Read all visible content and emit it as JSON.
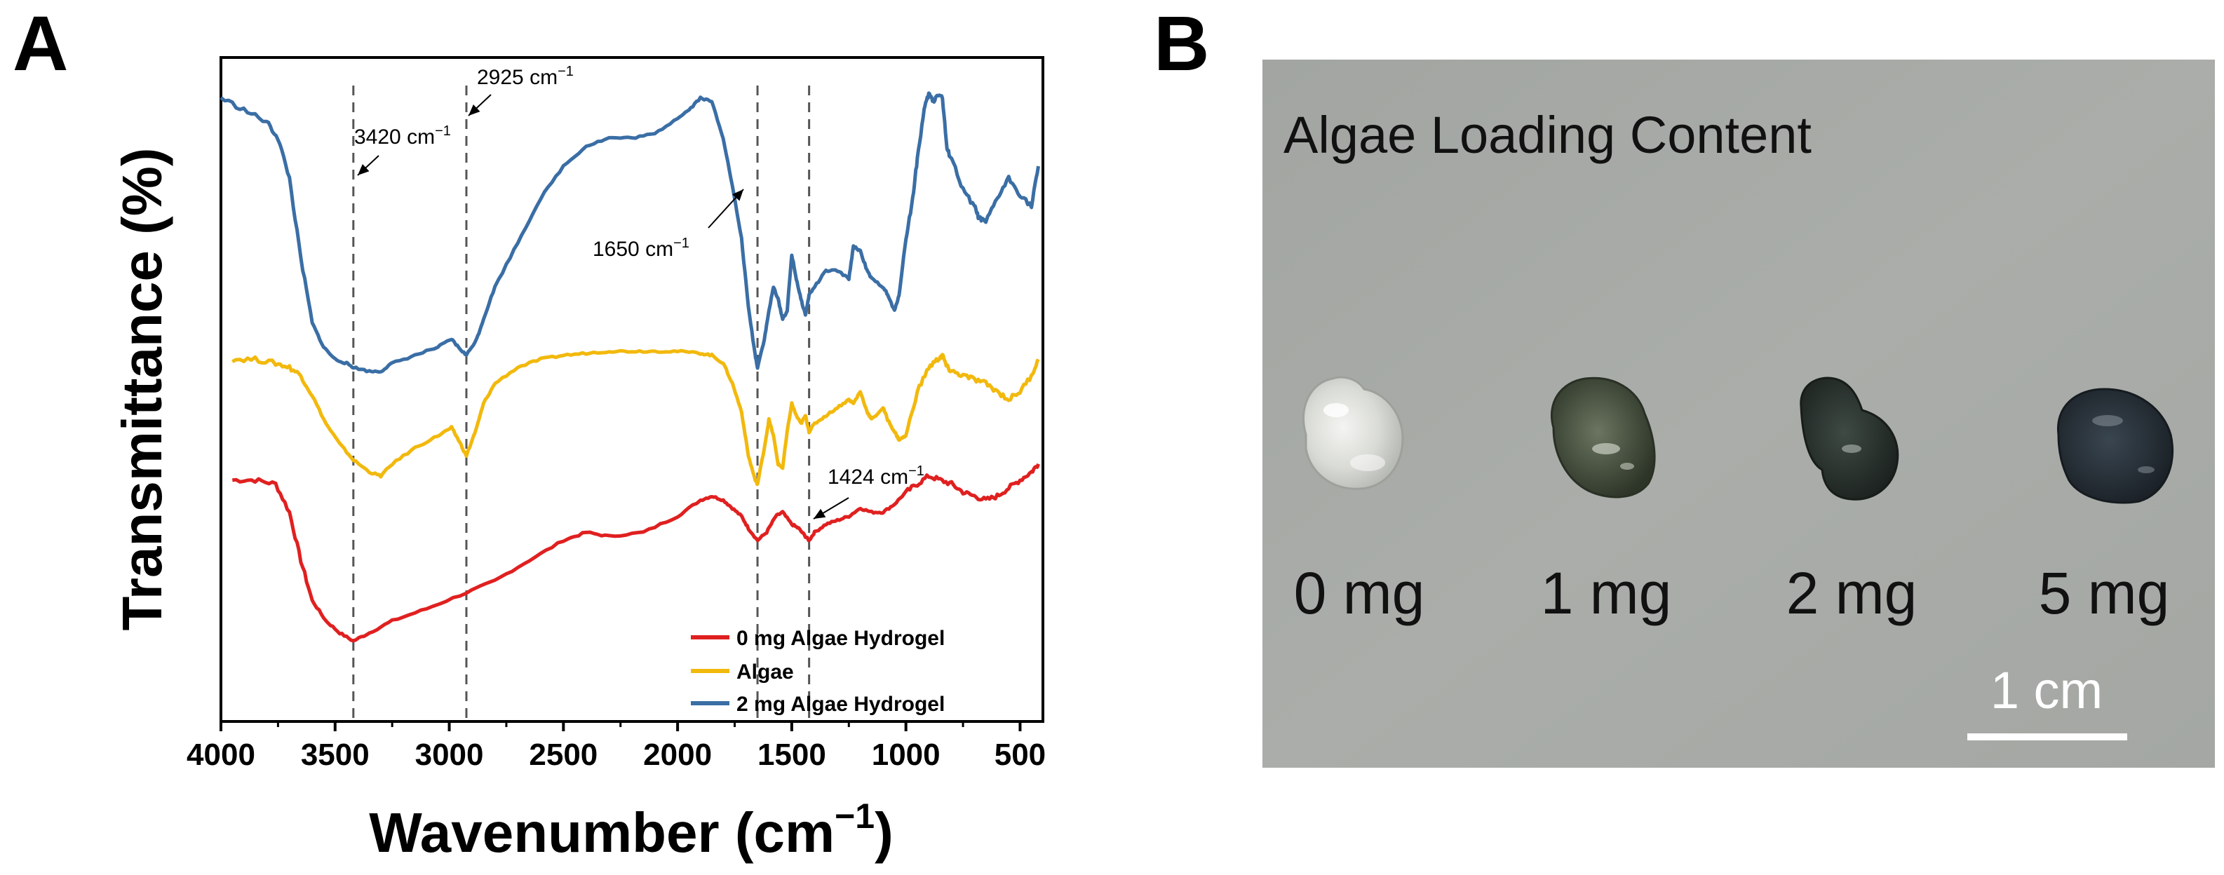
{
  "panels": {
    "a_letter": "A",
    "b_letter": "B"
  },
  "chart_data": {
    "type": "line",
    "title": "",
    "xlabel": "Wavenumber (cm",
    "xlabel_sup": "−1",
    "xlabel_close": ")",
    "ylabel": "Transmittance (%)",
    "xlim": [
      4000,
      400
    ],
    "x_reversed": true,
    "y_ticks_shown": false,
    "grid": false,
    "legend_position": "bottom-right",
    "x_ticks": [
      4000,
      3500,
      3000,
      2500,
      2000,
      1500,
      1000,
      500
    ],
    "colors": {
      "0mg": "#e02020",
      "algae": "#f2b90d",
      "2mg": "#3a6ea5"
    },
    "series": [
      {
        "name": "0 mg Algae Hydrogel",
        "key": "0mg",
        "x": [
          3950,
          3850,
          3760,
          3700,
          3650,
          3600,
          3540,
          3480,
          3420,
          3350,
          3250,
          3100,
          2925,
          2800,
          2650,
          2500,
          2400,
          2300,
          2150,
          2000,
          1900,
          1850,
          1800,
          1760,
          1720,
          1690,
          1650,
          1610,
          1570,
          1540,
          1500,
          1470,
          1440,
          1424,
          1400,
          1350,
          1300,
          1250,
          1200,
          1150,
          1100,
          1050,
          1000,
          950,
          900,
          850,
          800,
          750,
          700,
          650,
          600,
          550,
          500,
          450,
          420
        ],
        "y": [
          0.6,
          0.6,
          0.59,
          0.52,
          0.4,
          0.3,
          0.25,
          0.22,
          0.2,
          0.22,
          0.25,
          0.28,
          0.32,
          0.35,
          0.4,
          0.45,
          0.47,
          0.46,
          0.47,
          0.51,
          0.55,
          0.56,
          0.55,
          0.53,
          0.51,
          0.48,
          0.45,
          0.47,
          0.51,
          0.52,
          0.49,
          0.48,
          0.46,
          0.45,
          0.47,
          0.49,
          0.5,
          0.51,
          0.53,
          0.52,
          0.52,
          0.54,
          0.57,
          0.59,
          0.61,
          0.6,
          0.59,
          0.57,
          0.56,
          0.55,
          0.56,
          0.58,
          0.6,
          0.62,
          0.64
        ]
      },
      {
        "name": "Algae",
        "key": "algae",
        "x": [
          3950,
          3850,
          3760,
          3700,
          3650,
          3600,
          3540,
          3480,
          3420,
          3350,
          3300,
          3250,
          3150,
          3050,
          2990,
          2960,
          2925,
          2880,
          2850,
          2800,
          2700,
          2600,
          2500,
          2400,
          2300,
          2200,
          2100,
          2000,
          1900,
          1850,
          1800,
          1760,
          1720,
          1690,
          1660,
          1650,
          1620,
          1600,
          1580,
          1560,
          1540,
          1520,
          1500,
          1480,
          1460,
          1440,
          1424,
          1400,
          1350,
          1300,
          1250,
          1230,
          1200,
          1170,
          1150,
          1100,
          1080,
          1050,
          1030,
          1000,
          950,
          900,
          860,
          840,
          820,
          800,
          750,
          700,
          650,
          600,
          550,
          500,
          450,
          420
        ],
        "y": [
          0.9,
          0.9,
          0.89,
          0.88,
          0.86,
          0.81,
          0.74,
          0.69,
          0.65,
          0.62,
          0.61,
          0.64,
          0.68,
          0.71,
          0.73,
          0.7,
          0.66,
          0.73,
          0.79,
          0.84,
          0.88,
          0.9,
          0.91,
          0.915,
          0.92,
          0.92,
          0.92,
          0.92,
          0.915,
          0.91,
          0.89,
          0.84,
          0.77,
          0.66,
          0.6,
          0.59,
          0.68,
          0.75,
          0.71,
          0.64,
          0.63,
          0.72,
          0.79,
          0.76,
          0.74,
          0.76,
          0.72,
          0.74,
          0.76,
          0.78,
          0.8,
          0.79,
          0.82,
          0.77,
          0.75,
          0.78,
          0.75,
          0.72,
          0.7,
          0.71,
          0.82,
          0.88,
          0.9,
          0.91,
          0.88,
          0.87,
          0.86,
          0.85,
          0.84,
          0.82,
          0.8,
          0.82,
          0.86,
          0.9
        ]
      },
      {
        "name": "2 mg Algae Hydrogel",
        "key": "2mg",
        "x": [
          4000,
          3900,
          3800,
          3750,
          3700,
          3650,
          3600,
          3550,
          3500,
          3450,
          3420,
          3350,
          3300,
          3250,
          3150,
          3050,
          2990,
          2960,
          2925,
          2880,
          2850,
          2800,
          2700,
          2600,
          2500,
          2400,
          2300,
          2200,
          2100,
          2000,
          1950,
          1900,
          1850,
          1800,
          1760,
          1720,
          1690,
          1660,
          1650,
          1620,
          1600,
          1580,
          1560,
          1540,
          1520,
          1500,
          1480,
          1460,
          1440,
          1424,
          1400,
          1350,
          1300,
          1250,
          1230,
          1200,
          1170,
          1150,
          1100,
          1080,
          1050,
          1030,
          1000,
          970,
          950,
          920,
          900,
          880,
          860,
          840,
          820,
          800,
          750,
          700,
          680,
          650,
          600,
          550,
          500,
          450,
          420
        ],
        "y": [
          1.55,
          1.52,
          1.49,
          1.45,
          1.35,
          1.15,
          0.99,
          0.93,
          0.9,
          0.89,
          0.88,
          0.87,
          0.87,
          0.89,
          0.91,
          0.93,
          0.95,
          0.93,
          0.91,
          0.95,
          1.0,
          1.08,
          1.19,
          1.3,
          1.38,
          1.43,
          1.45,
          1.45,
          1.46,
          1.5,
          1.52,
          1.55,
          1.54,
          1.45,
          1.33,
          1.2,
          1.03,
          0.91,
          0.88,
          0.95,
          1.02,
          1.08,
          1.05,
          1.0,
          1.02,
          1.16,
          1.1,
          1.05,
          1.01,
          1.06,
          1.08,
          1.12,
          1.12,
          1.1,
          1.18,
          1.17,
          1.12,
          1.1,
          1.08,
          1.06,
          1.02,
          1.06,
          1.2,
          1.3,
          1.4,
          1.52,
          1.56,
          1.54,
          1.56,
          1.55,
          1.42,
          1.4,
          1.32,
          1.28,
          1.25,
          1.24,
          1.3,
          1.35,
          1.31,
          1.28,
          1.38
        ]
      }
    ],
    "reference_lines": [
      3420,
      2925,
      1650,
      1424
    ],
    "annotations": [
      {
        "text": "3420 cm",
        "sup": "−1",
        "line": 3420
      },
      {
        "text": "2925 cm",
        "sup": "−1",
        "line": 2925
      },
      {
        "text": "1650 cm",
        "sup": "−1",
        "line": 1650
      },
      {
        "text": "1424 cm",
        "sup": "−1",
        "line": 1424
      }
    ],
    "legend": [
      "0 mg Algae Hydrogel",
      "Algae",
      "2 mg Algae Hydrogel"
    ]
  },
  "photo": {
    "title": "Algae Loading Content",
    "labels": [
      "0 mg",
      "1 mg",
      "2 mg",
      "5 mg"
    ],
    "scale_bar": "1 cm",
    "background": "#a7aaa6"
  }
}
